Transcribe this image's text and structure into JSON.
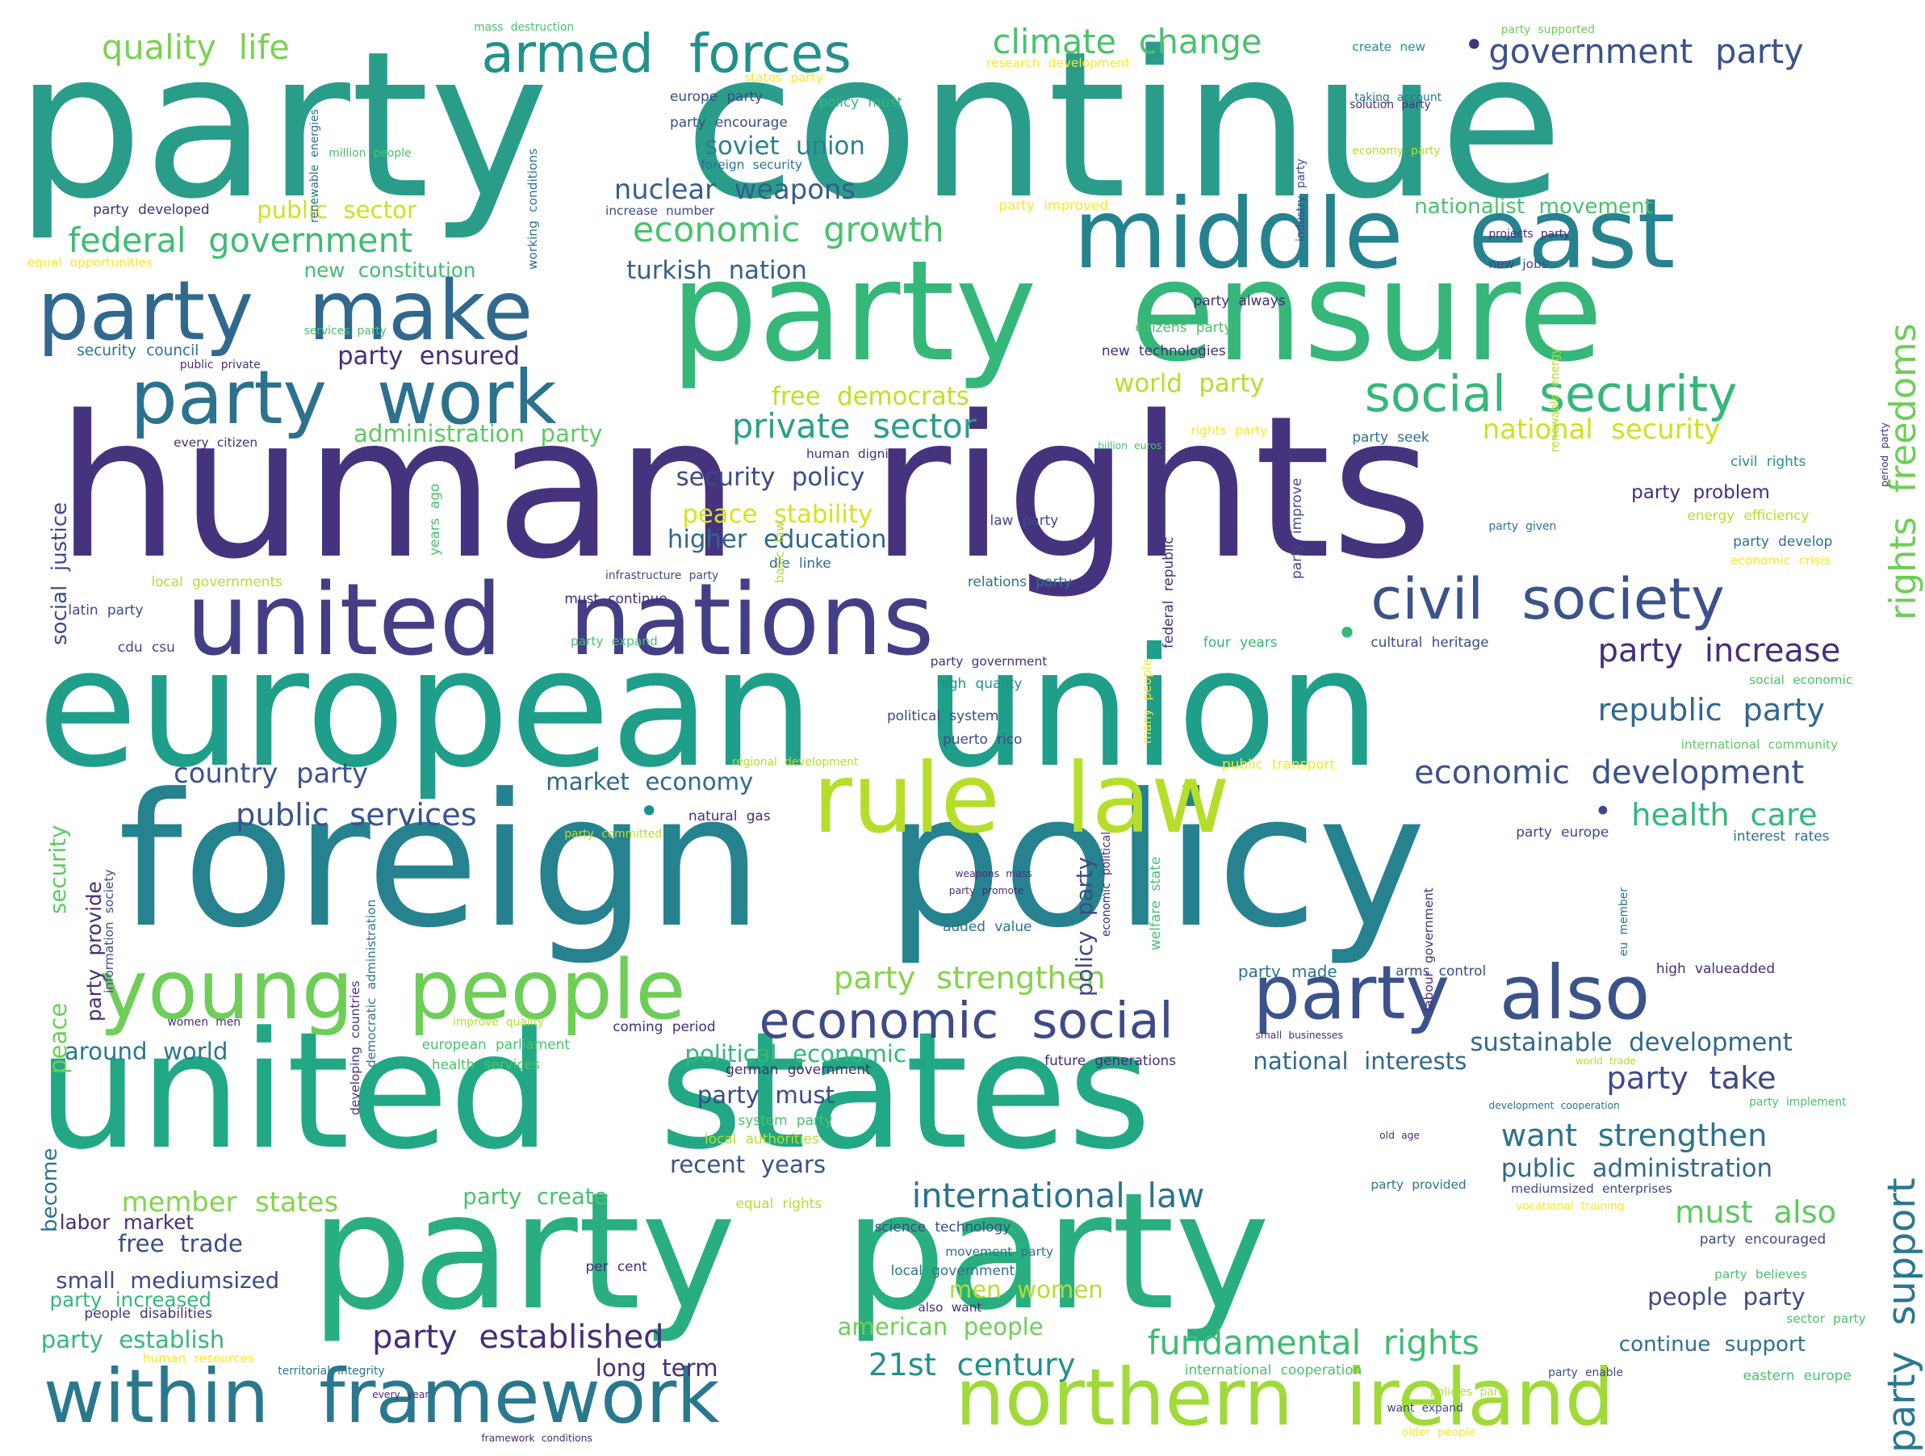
{
  "palette": {
    "dark_purple": "#46337e",
    "indigo": "#3e4a89",
    "blue": "#31688e",
    "teal": "#26828e",
    "teal_green": "#1f9e89",
    "green": "#35b779",
    "light_green": "#6ece58",
    "lime": "#b5de2b",
    "yellow": "#fde725"
  },
  "words": [
    {
      "text": "party continue",
      "color": "#2a9d8a"
    },
    {
      "text": "human rights",
      "color": "#46337e"
    },
    {
      "text": "foreign policy",
      "color": "#26828e"
    },
    {
      "text": "european union",
      "color": "#1f9e89"
    },
    {
      "text": "united states",
      "color": "#22a884"
    },
    {
      "text": "party party",
      "color": "#29af7f"
    },
    {
      "text": "party ensure",
      "color": "#35b779"
    },
    {
      "text": "united nations",
      "color": "#433e85"
    },
    {
      "text": "middle east",
      "color": "#26828e"
    },
    {
      "text": "party make",
      "color": "#31688e"
    },
    {
      "text": "rule law",
      "color": "#b5de2b"
    },
    {
      "text": "young people",
      "color": "#6ece58"
    },
    {
      "text": "within framework",
      "color": "#2a788e"
    },
    {
      "text": "northern ireland",
      "color": "#a0da39"
    },
    {
      "text": "party also",
      "color": "#3b528b"
    },
    {
      "text": "party work",
      "color": "#2c728e"
    },
    {
      "text": "civil society",
      "color": "#3b528b"
    },
    {
      "text": "armed forces",
      "color": "#21918c"
    },
    {
      "text": "social security",
      "color": "#35b779"
    },
    {
      "text": "economic social",
      "color": "#3e4a89"
    },
    {
      "text": "climate change",
      "color": "#4ac16d"
    },
    {
      "text": "government party",
      "color": "#3b528b"
    },
    {
      "text": "quality life",
      "color": "#7ad151"
    },
    {
      "text": "federal government",
      "color": "#3fbc73"
    },
    {
      "text": "economic growth",
      "color": "#4ac16d"
    },
    {
      "text": "fundamental rights",
      "color": "#3fbc73"
    },
    {
      "text": "international law",
      "color": "#2c728e"
    },
    {
      "text": "party established",
      "color": "#472d7b"
    },
    {
      "text": "party increase",
      "color": "#472d7b"
    },
    {
      "text": "republic party",
      "color": "#31688e"
    },
    {
      "text": "economic development",
      "color": "#3b528b"
    },
    {
      "text": "private sector",
      "color": "#2a9d8a"
    },
    {
      "text": "nuclear weapons",
      "color": "#355f8d"
    },
    {
      "text": "party support",
      "color": "#2a788e"
    },
    {
      "text": "rights freedoms",
      "color": "#6ece58"
    },
    {
      "text": "public services",
      "color": "#3b528b"
    },
    {
      "text": "health care",
      "color": "#35b779"
    },
    {
      "text": "party strengthen",
      "color": "#84d44b"
    },
    {
      "text": "party take",
      "color": "#3e4a89"
    },
    {
      "text": "want strengthen",
      "color": "#2c728e"
    },
    {
      "text": "must also",
      "color": "#5ec962"
    },
    {
      "text": "21st century",
      "color": "#21918c"
    },
    {
      "text": "member states",
      "color": "#84d44b"
    },
    {
      "text": "country party",
      "color": "#3b528b"
    },
    {
      "text": "national security",
      "color": "#d0e11c"
    },
    {
      "text": "sustainable development",
      "color": "#31688e"
    },
    {
      "text": "security policy",
      "color": "#3e4a89"
    },
    {
      "text": "public administration",
      "color": "#31688e"
    },
    {
      "text": "peace stability",
      "color": "#d8e219"
    },
    {
      "text": "free democrats",
      "color": "#c2df23"
    },
    {
      "text": "world party",
      "color": "#b5de2b"
    },
    {
      "text": "higher education",
      "color": "#31688e"
    },
    {
      "text": "soviet union",
      "color": "#26828e"
    },
    {
      "text": "turkish nation",
      "color": "#355f8d"
    },
    {
      "text": "party ensured",
      "color": "#472d7b"
    },
    {
      "text": "public sector",
      "color": "#d0e11c"
    },
    {
      "text": "administration party",
      "color": "#5ec962"
    },
    {
      "text": "market economy",
      "color": "#31688e"
    },
    {
      "text": "political economic",
      "color": "#35b779"
    },
    {
      "text": "national interests",
      "color": "#31688e"
    },
    {
      "text": "party must",
      "color": "#3e4a89"
    },
    {
      "text": "recent years",
      "color": "#3b528b"
    },
    {
      "text": "around world",
      "color": "#2a788e"
    },
    {
      "text": "free trade",
      "color": "#3e4a89"
    },
    {
      "text": "small mediumsized",
      "color": "#3e4a89"
    },
    {
      "text": "party establish",
      "color": "#35b779"
    },
    {
      "text": "long term",
      "color": "#472d7b"
    },
    {
      "text": "american people",
      "color": "#6ece58"
    },
    {
      "text": "men women",
      "color": "#b5de2b"
    },
    {
      "text": "people party",
      "color": "#3e4a89"
    },
    {
      "text": "continue support",
      "color": "#2c728e"
    },
    {
      "text": "party create",
      "color": "#4ac16d"
    },
    {
      "text": "nationalist movement",
      "color": "#4ac16d"
    },
    {
      "text": "new constitution",
      "color": "#3fbc73"
    },
    {
      "text": "party problem",
      "color": "#472d7b"
    },
    {
      "text": "labor market",
      "color": "#472d7b"
    },
    {
      "text": "party increased",
      "color": "#35b779"
    },
    {
      "text": "social justice",
      "color": "#3e4a89"
    },
    {
      "text": "security",
      "color": "#5ec962"
    },
    {
      "text": "peace",
      "color": "#6ece58"
    },
    {
      "text": "become",
      "color": "#2c728e"
    },
    {
      "text": "party provide",
      "color": "#472d7b"
    },
    {
      "text": "policy party",
      "color": "#3e4a89"
    },
    {
      "text": "security council",
      "color": "#2c728e"
    },
    {
      "text": "equal opportunities",
      "color": "#fde725"
    },
    {
      "text": "party developed",
      "color": "#472d7b"
    },
    {
      "text": "energy efficiency",
      "color": "#b5de2b"
    },
    {
      "text": "civil rights",
      "color": "#21918c"
    },
    {
      "text": "party develop",
      "color": "#2c728e"
    },
    {
      "text": "economic crisis",
      "color": "#fde725"
    },
    {
      "text": "cultural heritage",
      "color": "#3e4a89"
    },
    {
      "text": "four years",
      "color": "#35b779"
    },
    {
      "text": "social economic",
      "color": "#4ac16d"
    },
    {
      "text": "international community",
      "color": "#5ec962"
    },
    {
      "text": "interest rates",
      "color": "#2c728e"
    },
    {
      "text": "party europe",
      "color": "#3e4a89"
    },
    {
      "text": "high valueadded",
      "color": "#472d7b"
    },
    {
      "text": "arms control",
      "color": "#3e4a89"
    },
    {
      "text": "party made",
      "color": "#2c728e"
    },
    {
      "text": "relations party",
      "color": "#2c728e"
    },
    {
      "text": "die linke",
      "color": "#31688e"
    },
    {
      "text": "latin party",
      "color": "#3e4a89"
    },
    {
      "text": "cdu csu",
      "color": "#3e4a89"
    },
    {
      "text": "local governments",
      "color": "#b5de2b"
    },
    {
      "text": "people disabilities",
      "color": "#472d7b"
    },
    {
      "text": "human resources",
      "color": "#fde725"
    },
    {
      "text": "every citizen",
      "color": "#472d7b"
    },
    {
      "text": "public private",
      "color": "#472d7b"
    },
    {
      "text": "services party",
      "color": "#4ac16d"
    },
    {
      "text": "new technologies",
      "color": "#472d7b"
    },
    {
      "text": "citizens party",
      "color": "#4ac16d"
    },
    {
      "text": "party always",
      "color": "#472d7b"
    },
    {
      "text": "new jobs",
      "color": "#3e4a89"
    },
    {
      "text": "projects party",
      "color": "#472d7b"
    },
    {
      "text": "increase number",
      "color": "#3e4a89"
    },
    {
      "text": "party improved",
      "color": "#fde725"
    },
    {
      "text": "million people",
      "color": "#4ac16d"
    },
    {
      "text": "economy party",
      "color": "#b5de2b"
    },
    {
      "text": "solution party",
      "color": "#472d7b"
    },
    {
      "text": "party encourage",
      "color": "#3e4a89"
    },
    {
      "text": "policy must",
      "color": "#35b779"
    },
    {
      "text": "europe party",
      "color": "#3e4a89"
    },
    {
      "text": "states party",
      "color": "#fde725"
    },
    {
      "text": "research development",
      "color": "#fde725"
    },
    {
      "text": "foreign security",
      "color": "#2c728e"
    },
    {
      "text": "create new",
      "color": "#21918c"
    },
    {
      "text": "taking account",
      "color": "#2c728e"
    },
    {
      "text": "party supported",
      "color": "#6ece58"
    },
    {
      "text": "mass destruction",
      "color": "#4ac16d"
    },
    {
      "text": "renewable energies",
      "color": "#2c728e"
    },
    {
      "text": "working conditions",
      "color": "#2c728e"
    },
    {
      "text": "industry party",
      "color": "#3e4a89"
    },
    {
      "text": "renewable energy",
      "color": "#b5de2b"
    },
    {
      "text": "period party",
      "color": "#472d7b"
    },
    {
      "text": "party seek",
      "color": "#2c728e"
    },
    {
      "text": "rights party",
      "color": "#fde725"
    },
    {
      "text": "billion euros",
      "color": "#4ac16d"
    },
    {
      "text": "human dignity",
      "color": "#472d7b"
    },
    {
      "text": "party improve",
      "color": "#3e4a89"
    },
    {
      "text": "years ago",
      "color": "#4ac16d"
    },
    {
      "text": "law party",
      "color": "#3e4a89"
    },
    {
      "text": "federal republic",
      "color": "#472d7b"
    },
    {
      "text": "party given",
      "color": "#2c728e"
    },
    {
      "text": "basic law",
      "color": "#b5de2b"
    },
    {
      "text": "infrastructure party",
      "color": "#3e4a89"
    },
    {
      "text": "must continue",
      "color": "#472d7b"
    },
    {
      "text": "party expand",
      "color": "#4ac16d"
    },
    {
      "text": "party government",
      "color": "#472d7b"
    },
    {
      "text": "high quality",
      "color": "#21918c"
    },
    {
      "text": "political system",
      "color": "#3e4a89"
    },
    {
      "text": "puerto rico",
      "color": "#3e4a89"
    },
    {
      "text": "many people",
      "color": "#fde725"
    },
    {
      "text": "regional development",
      "color": "#b5de2b"
    },
    {
      "text": "public transport",
      "color": "#fde725"
    },
    {
      "text": "natural gas",
      "color": "#472d7b"
    },
    {
      "text": "party committed",
      "color": "#b5de2b"
    },
    {
      "text": "information society",
      "color": "#3e4a89"
    },
    {
      "text": "developing countries",
      "color": "#472d7b"
    },
    {
      "text": "democratic administration",
      "color": "#2c728e"
    },
    {
      "text": "economic political",
      "color": "#472d7b"
    },
    {
      "text": "welfare state",
      "color": "#4ac16d"
    },
    {
      "text": "weapons mass",
      "color": "#472d7b"
    },
    {
      "text": "party promote",
      "color": "#472d7b"
    },
    {
      "text": "added value",
      "color": "#2c728e"
    },
    {
      "text": "labour government",
      "color": "#472d7b"
    },
    {
      "text": "eu member",
      "color": "#2c728e"
    },
    {
      "text": "women men",
      "color": "#472d7b"
    },
    {
      "text": "improve quality",
      "color": "#b5de2b"
    },
    {
      "text": "coming period",
      "color": "#472d7b"
    },
    {
      "text": "european parliament",
      "color": "#4ac16d"
    },
    {
      "text": "health services",
      "color": "#4ac16d"
    },
    {
      "text": "german government",
      "color": "#472d7b"
    },
    {
      "text": "future generations",
      "color": "#472d7b"
    },
    {
      "text": "small businesses",
      "color": "#472d7b"
    },
    {
      "text": "world trade",
      "color": "#b5de2b"
    },
    {
      "text": "development cooperation",
      "color": "#2c728e"
    },
    {
      "text": "party implement",
      "color": "#4ac16d"
    },
    {
      "text": "system party",
      "color": "#4ac16d"
    },
    {
      "text": "local authorities",
      "color": "#b5de2b"
    },
    {
      "text": "old age",
      "color": "#472d7b"
    },
    {
      "text": "party provided",
      "color": "#2c728e"
    },
    {
      "text": "mediumsized enterprises",
      "color": "#3e4a89"
    },
    {
      "text": "equal rights",
      "color": "#b5de2b"
    },
    {
      "text": "vocational training",
      "color": "#fde725"
    },
    {
      "text": "science technology",
      "color": "#3e4a89"
    },
    {
      "text": "party encouraged",
      "color": "#3e4a89"
    },
    {
      "text": "movement party",
      "color": "#2c728e"
    },
    {
      "text": "per cent",
      "color": "#472d7b"
    },
    {
      "text": "local government",
      "color": "#2c728e"
    },
    {
      "text": "party believes",
      "color": "#4ac16d"
    },
    {
      "text": "sector party",
      "color": "#4ac16d"
    },
    {
      "text": "also want",
      "color": "#472d7b"
    },
    {
      "text": "territorial integrity",
      "color": "#2c728e"
    },
    {
      "text": "international cooperation",
      "color": "#4ac16d"
    },
    {
      "text": "party enable",
      "color": "#3e4a89"
    },
    {
      "text": "eastern europe",
      "color": "#4ac16d"
    },
    {
      "text": "every year",
      "color": "#472d7b"
    },
    {
      "text": "policies party",
      "color": "#b5de2b"
    },
    {
      "text": "want expand",
      "color": "#3e4a89"
    },
    {
      "text": "framework conditions",
      "color": "#472d7b"
    },
    {
      "text": "older people",
      "color": "#fde725"
    },
    {
      "text": "•",
      "color": "#46337e"
    },
    {
      "text": "•",
      "color": "#35b779"
    },
    {
      "text": "•",
      "color": "#21918c"
    },
    {
      "text": "•",
      "color": "#3e4a89"
    },
    {
      "text": "•",
      "color": "#2a9d8a"
    }
  ]
}
